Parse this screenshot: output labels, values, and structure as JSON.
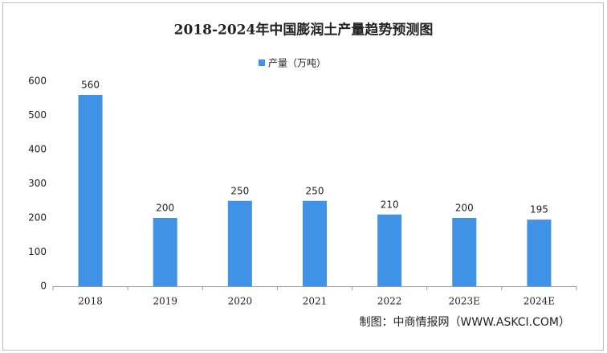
{
  "chart_data": {
    "type": "bar",
    "title": "2018-2024年中国膨润土产量趋势预测图",
    "categories": [
      "2018",
      "2019",
      "2020",
      "2021",
      "2022",
      "2023E",
      "2024E"
    ],
    "series": [
      {
        "name": "产量（万吨）",
        "color": "#3f92e6",
        "values": [
          560,
          200,
          250,
          250,
          210,
          200,
          195
        ]
      }
    ],
    "ylim": [
      0,
      600
    ],
    "yticks": [
      0,
      100,
      200,
      300,
      400,
      500,
      600
    ],
    "grid": false,
    "legend": "top",
    "source": "制图：中商情报网（WWW.ASKCI.COM）"
  }
}
